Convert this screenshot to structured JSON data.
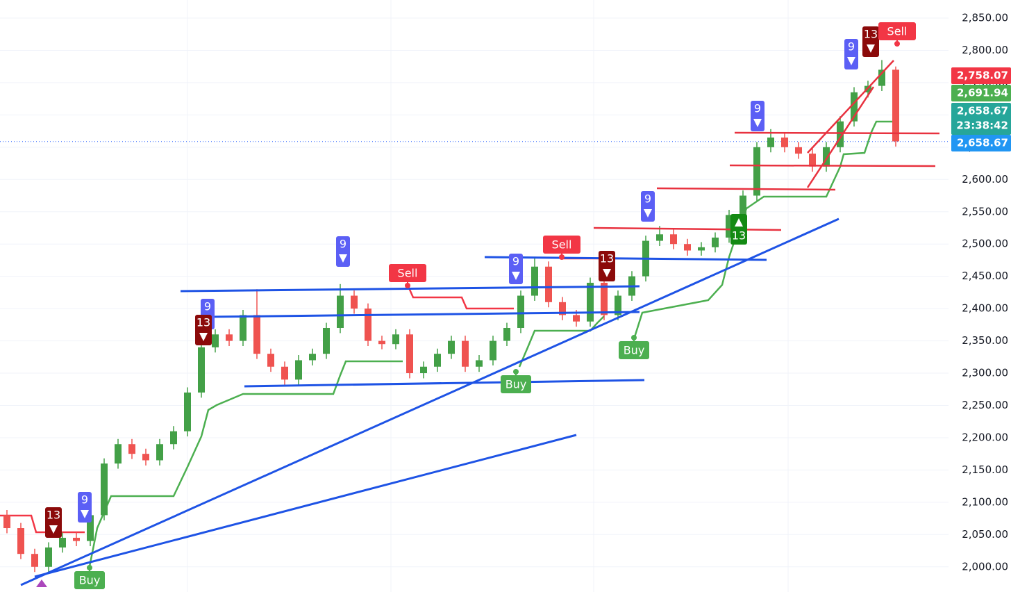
{
  "chart_data": {
    "type": "candlestick",
    "ylim": [
      1961,
      2878
    ],
    "yticks": [
      {
        "value": 2000,
        "label": "2,000.00"
      },
      {
        "value": 2050,
        "label": "2,050.00"
      },
      {
        "value": 2100,
        "label": "2,100.00"
      },
      {
        "value": 2150,
        "label": "2,150.00"
      },
      {
        "value": 2200,
        "label": "2,200.00"
      },
      {
        "value": 2250,
        "label": "2,250.00"
      },
      {
        "value": 2300,
        "label": "2,300.00"
      },
      {
        "value": 2350,
        "label": "2,350.00"
      },
      {
        "value": 2400,
        "label": "2,400.00"
      },
      {
        "value": 2450,
        "label": "2,450.00"
      },
      {
        "value": 2500,
        "label": "2,500.00"
      },
      {
        "value": 2550,
        "label": "2,550.00"
      },
      {
        "value": 2600,
        "label": "2,600.00"
      },
      {
        "value": 2650,
        "label": "2,650.00"
      },
      {
        "value": 2700,
        "label": "2,700.00"
      },
      {
        "value": 2750,
        "label": "2,750.00"
      },
      {
        "value": 2800,
        "label": "2,800.00"
      },
      {
        "value": 2850,
        "label": "2,850.00"
      }
    ],
    "grid": true,
    "up_color": "#43a047",
    "down_color": "#ef5350",
    "open": [
      2080,
      2060,
      2020,
      2000,
      2030,
      2045,
      2040,
      2080,
      2160,
      2190,
      2175,
      2165,
      2190,
      2210,
      2270,
      2340,
      2360,
      2350,
      2390,
      2330,
      2310,
      2290,
      2320,
      2330,
      2370,
      2420,
      2400,
      2350,
      2345,
      2360,
      2300,
      2310,
      2330,
      2350,
      2310,
      2320,
      2350,
      2370,
      2420,
      2465,
      2410,
      2390,
      2380,
      2440,
      2390,
      2420,
      2450,
      2505,
      2515,
      2500,
      2490,
      2495,
      2510,
      2545,
      2575,
      2650,
      2665,
      2650,
      2640,
      2620,
      2650,
      2690,
      2735,
      2745,
      2770
    ],
    "high": [
      2088,
      2068,
      2028,
      2038,
      2053,
      2053,
      2088,
      2168,
      2198,
      2198,
      2183,
      2198,
      2218,
      2278,
      2348,
      2368,
      2368,
      2398,
      2430,
      2338,
      2318,
      2328,
      2338,
      2378,
      2438,
      2428,
      2408,
      2358,
      2368,
      2368,
      2318,
      2338,
      2358,
      2358,
      2328,
      2358,
      2378,
      2428,
      2478,
      2473,
      2418,
      2398,
      2448,
      2448,
      2428,
      2458,
      2513,
      2528,
      2523,
      2508,
      2503,
      2518,
      2553,
      2583,
      2658,
      2678,
      2673,
      2658,
      2648,
      2658,
      2698,
      2743,
      2753,
      2785,
      2775
    ],
    "low": [
      2052,
      2012,
      1992,
      1992,
      2022,
      2032,
      2032,
      2072,
      2152,
      2167,
      2157,
      2157,
      2182,
      2202,
      2262,
      2332,
      2342,
      2342,
      2322,
      2302,
      2282,
      2282,
      2312,
      2322,
      2362,
      2392,
      2342,
      2337,
      2337,
      2292,
      2292,
      2302,
      2322,
      2302,
      2302,
      2312,
      2342,
      2362,
      2412,
      2402,
      2382,
      2372,
      2372,
      2382,
      2382,
      2412,
      2442,
      2497,
      2492,
      2482,
      2482,
      2487,
      2502,
      2537,
      2567,
      2642,
      2642,
      2632,
      2612,
      2612,
      2642,
      2682,
      2727,
      2737,
      2651
    ],
    "close": [
      2060,
      2020,
      2000,
      2030,
      2045,
      2040,
      2080,
      2160,
      2190,
      2175,
      2165,
      2190,
      2210,
      2270,
      2340,
      2360,
      2350,
      2390,
      2330,
      2310,
      2290,
      2320,
      2330,
      2370,
      2420,
      2400,
      2350,
      2345,
      2360,
      2300,
      2310,
      2330,
      2350,
      2310,
      2320,
      2350,
      2370,
      2420,
      2465,
      2410,
      2390,
      2380,
      2440,
      2390,
      2420,
      2450,
      2505,
      2515,
      2500,
      2490,
      2495,
      2510,
      2545,
      2575,
      2650,
      2665,
      2650,
      2640,
      2620,
      2650,
      2690,
      2735,
      2745,
      2770,
      2659
    ],
    "price_tags": [
      {
        "value": 2758.07,
        "label": "2,758.07",
        "color": "#f23645"
      },
      {
        "value": 2691.94,
        "label": "2,691.94",
        "color": "#4caf50"
      },
      {
        "value": 2658.67,
        "label": "2,658.67",
        "color": "#26a69a"
      },
      {
        "value": 2658.67,
        "label": "2,658.67",
        "color": "#2196f3"
      }
    ],
    "countdown": "23:38:42",
    "signals": [
      {
        "label": "9",
        "color": "#5b5ff5"
      },
      {
        "label": "13",
        "color": "#8b0a0a"
      },
      {
        "label": "Buy",
        "color": "#4caf50"
      },
      {
        "label": "9",
        "color": "#5b5ff5"
      },
      {
        "label": "13",
        "color": "#8b0a0a"
      },
      {
        "label": "9",
        "color": "#5b5ff5"
      },
      {
        "label": "Sell",
        "color": "#f23645"
      },
      {
        "label": "9",
        "color": "#5b5ff5"
      },
      {
        "label": "Buy",
        "color": "#4caf50"
      },
      {
        "label": "Sell",
        "color": "#f23645"
      },
      {
        "label": "13",
        "color": "#8b0a0a"
      },
      {
        "label": "Buy",
        "color": "#4caf50"
      },
      {
        "label": "9",
        "color": "#5b5ff5"
      },
      {
        "label": "13",
        "color": "#138a13"
      },
      {
        "label": "9",
        "color": "#5b5ff5"
      },
      {
        "label": "9",
        "color": "#5b5ff5"
      },
      {
        "label": "13",
        "color": "#8b0a0a"
      },
      {
        "label": "Sell",
        "color": "#f23645"
      }
    ]
  }
}
